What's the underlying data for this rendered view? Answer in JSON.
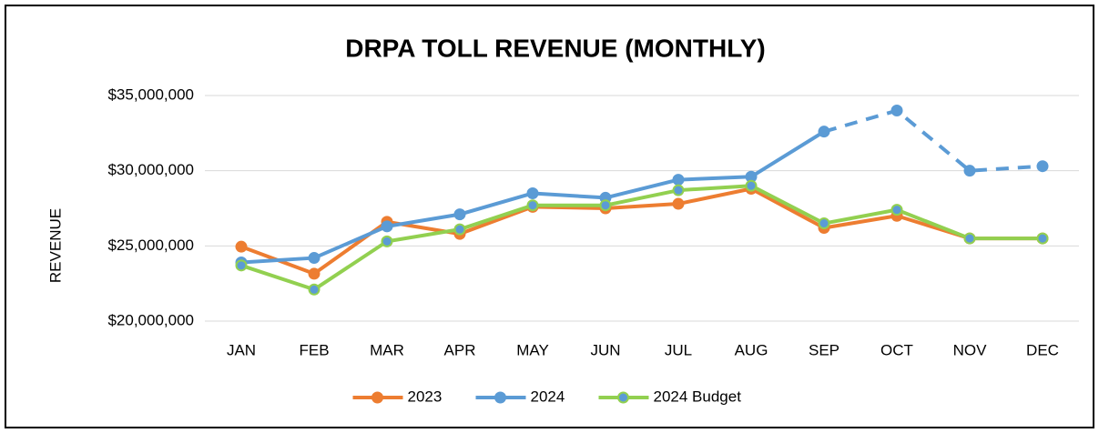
{
  "chart_data": {
    "type": "line",
    "title": "DRPA TOLL REVENUE (MONTHLY)",
    "y_label": "REVENUE",
    "categories": [
      "JAN",
      "FEB",
      "MAR",
      "APR",
      "MAY",
      "JUN",
      "JUL",
      "AUG",
      "SEP",
      "OCT",
      "NOV",
      "DEC"
    ],
    "series": [
      {
        "name": "2023",
        "color": "#ED7D31",
        "values": [
          24950000,
          23150000,
          26600000,
          25800000,
          27600000,
          27500000,
          27800000,
          28800000,
          26200000,
          27000000,
          25500000,
          25500000
        ]
      },
      {
        "name": "2024",
        "color": "#5B9BD5",
        "dashed_from": "SEP",
        "values": [
          23900000,
          24200000,
          26300000,
          27100000,
          28500000,
          28200000,
          29400000,
          29600000,
          32600000,
          34000000,
          30000000,
          30300000
        ]
      },
      {
        "name": "2024 Budget",
        "color": "#92D050",
        "marker_color": "#5B9BD5",
        "values": [
          23700000,
          22100000,
          25300000,
          26100000,
          27700000,
          27700000,
          28700000,
          29000000,
          26500000,
          27400000,
          25500000,
          25500000
        ]
      }
    ],
    "ylim": [
      20000000,
      35000000
    ],
    "yticks": [
      {
        "value": 20000000,
        "label": "$20,000,000"
      },
      {
        "value": 25000000,
        "label": "$25,000,000"
      },
      {
        "value": 30000000,
        "label": "$30,000,000"
      },
      {
        "value": 35000000,
        "label": "$35,000,000"
      }
    ],
    "grid": true,
    "legend": "bottom"
  }
}
